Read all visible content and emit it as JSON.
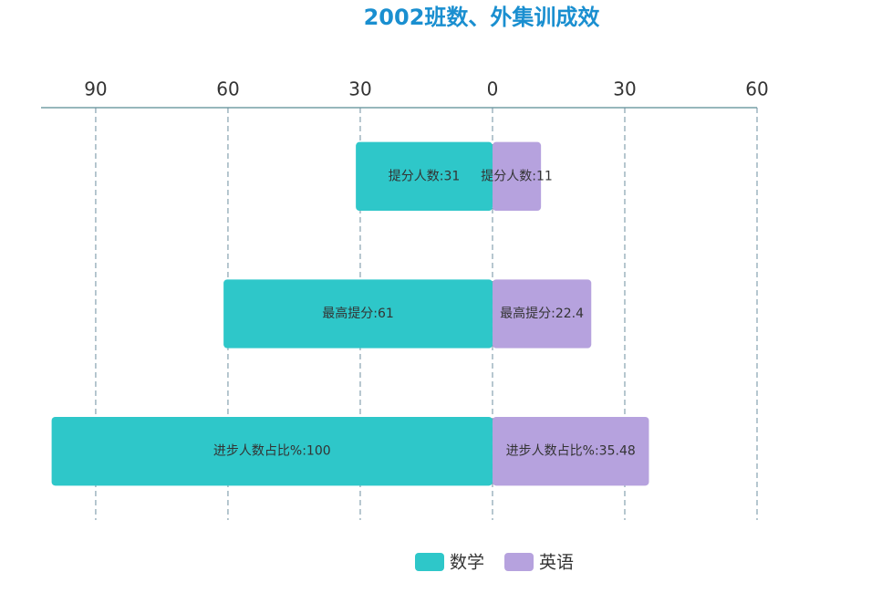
{
  "chart_data": {
    "type": "bar",
    "orientation": "horizontal",
    "title": "2002班数、外集训成效",
    "series": [
      {
        "name": "数学",
        "color": "#2ec7c9",
        "values": [
          -31,
          -61,
          -100
        ],
        "value_labels": [
          "提分人数:31",
          "最高提分:61",
          "进步人数占比%:100"
        ]
      },
      {
        "name": "英语",
        "color": "#b6a2de",
        "values": [
          11,
          22.4,
          35.48
        ],
        "value_labels": [
          "提分人数:11",
          "最高提分:22.4",
          "进步人数占比%:35.48"
        ]
      }
    ],
    "xlim": [
      -102.4,
      60
    ],
    "xticks": [
      {
        "value": -90,
        "label": "90"
      },
      {
        "value": -60,
        "label": "60"
      },
      {
        "value": -30,
        "label": "30"
      },
      0,
      30,
      60
    ],
    "grid": true,
    "legend": "bottom"
  }
}
